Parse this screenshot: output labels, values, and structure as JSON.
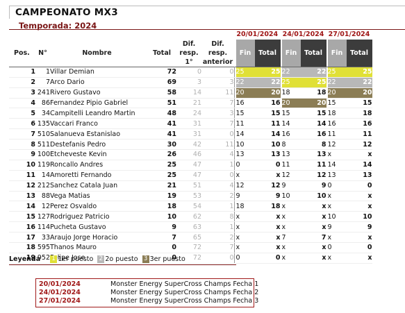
{
  "header": {
    "title": "CAMPEONATO MX3",
    "season": "Temporada: 2024"
  },
  "columns": {
    "pos": "Pos.",
    "num": "N°",
    "name": "Nombre",
    "total": "Total",
    "dif_first": [
      "Dif.",
      "resp.",
      "1°"
    ],
    "dif_prev": [
      "Dif.",
      "resp.",
      "anterior"
    ],
    "fin": "Fin",
    "tot": "Total"
  },
  "races": [
    {
      "date": "20/01/2024",
      "name": "Monster Energy SuperCross Champs Fecha 1"
    },
    {
      "date": "24/01/2024",
      "name": "Monster Energy SuperCross Champs Fecha 2"
    },
    {
      "date": "27/01/2024",
      "name": "Monster Energy SuperCross Champs Fecha 3"
    }
  ],
  "standings": [
    {
      "pos": "1",
      "num": "1",
      "name": "Villar Demian",
      "total": "72",
      "dif1": "0",
      "difp": "0",
      "r": [
        {
          "fin": "25",
          "tot": "25",
          "medal": "gold"
        },
        {
          "fin": "22",
          "tot": "22",
          "medal": "silver"
        },
        {
          "fin": "25",
          "tot": "25",
          "medal": "gold"
        }
      ]
    },
    {
      "pos": "2",
      "num": "7",
      "name": "Arco Dario",
      "total": "69",
      "dif1": "3",
      "difp": "3",
      "r": [
        {
          "fin": "22",
          "tot": "22",
          "medal": "silver"
        },
        {
          "fin": "25",
          "tot": "25",
          "medal": "gold"
        },
        {
          "fin": "22",
          "tot": "22",
          "medal": "silver"
        }
      ]
    },
    {
      "pos": "3",
      "num": "241",
      "name": "Rivero Gustavo",
      "total": "58",
      "dif1": "14",
      "difp": "11",
      "r": [
        {
          "fin": "20",
          "tot": "20",
          "medal": "bronze"
        },
        {
          "fin": "18",
          "tot": "18",
          "medal": "none"
        },
        {
          "fin": "20",
          "tot": "20",
          "medal": "bronze"
        }
      ]
    },
    {
      "pos": "4",
      "num": "86",
      "name": "Fernandez Pipio Gabriel",
      "total": "51",
      "dif1": "21",
      "difp": "7",
      "r": [
        {
          "fin": "16",
          "tot": "16",
          "medal": "none"
        },
        {
          "fin": "20",
          "tot": "20",
          "medal": "bronze"
        },
        {
          "fin": "15",
          "tot": "15",
          "medal": "none"
        }
      ]
    },
    {
      "pos": "5",
      "num": "34",
      "name": "Campitelli Leandro Martin",
      "total": "48",
      "dif1": "24",
      "difp": "3",
      "r": [
        {
          "fin": "15",
          "tot": "15",
          "medal": "none"
        },
        {
          "fin": "15",
          "tot": "15",
          "medal": "none"
        },
        {
          "fin": "18",
          "tot": "18",
          "medal": "none"
        }
      ]
    },
    {
      "pos": "6",
      "num": "135",
      "name": "Vaccari Franco",
      "total": "41",
      "dif1": "31",
      "difp": "7",
      "r": [
        {
          "fin": "11",
          "tot": "11",
          "medal": "none"
        },
        {
          "fin": "14",
          "tot": "14",
          "medal": "none"
        },
        {
          "fin": "16",
          "tot": "16",
          "medal": "none"
        }
      ]
    },
    {
      "pos": "7",
      "num": "510",
      "name": "Salanueva Estanislao",
      "total": "41",
      "dif1": "31",
      "difp": "0",
      "r": [
        {
          "fin": "14",
          "tot": "14",
          "medal": "none"
        },
        {
          "fin": "16",
          "tot": "16",
          "medal": "none"
        },
        {
          "fin": "11",
          "tot": "11",
          "medal": "none"
        }
      ]
    },
    {
      "pos": "8",
      "num": "511",
      "name": "Destefanis Pedro",
      "total": "30",
      "dif1": "42",
      "difp": "11",
      "r": [
        {
          "fin": "10",
          "tot": "10",
          "medal": "none"
        },
        {
          "fin": "8",
          "tot": "8",
          "medal": "none"
        },
        {
          "fin": "12",
          "tot": "12",
          "medal": "none"
        }
      ]
    },
    {
      "pos": "9",
      "num": "100",
      "name": "Etcheveste Kevin",
      "total": "26",
      "dif1": "46",
      "difp": "4",
      "r": [
        {
          "fin": "13",
          "tot": "13",
          "medal": "none"
        },
        {
          "fin": "13",
          "tot": "13",
          "medal": "none"
        },
        {
          "fin": "x",
          "tot": "x",
          "medal": "none"
        }
      ]
    },
    {
      "pos": "10",
      "num": "119",
      "name": "Roncallo Andres",
      "total": "25",
      "dif1": "47",
      "difp": "1",
      "r": [
        {
          "fin": "0",
          "tot": "0",
          "medal": "none"
        },
        {
          "fin": "11",
          "tot": "11",
          "medal": "none"
        },
        {
          "fin": "14",
          "tot": "14",
          "medal": "none"
        }
      ]
    },
    {
      "pos": "11",
      "num": "14",
      "name": "Amoretti Fernando",
      "total": "25",
      "dif1": "47",
      "difp": "0",
      "r": [
        {
          "fin": "x",
          "tot": "x",
          "medal": "none"
        },
        {
          "fin": "12",
          "tot": "12",
          "medal": "none"
        },
        {
          "fin": "13",
          "tot": "13",
          "medal": "none"
        }
      ]
    },
    {
      "pos": "12",
      "num": "212",
      "name": "Sanchez Catala Juan",
      "total": "21",
      "dif1": "51",
      "difp": "4",
      "r": [
        {
          "fin": "12",
          "tot": "12",
          "medal": "none"
        },
        {
          "fin": "9",
          "tot": "9",
          "medal": "none"
        },
        {
          "fin": "0",
          "tot": "0",
          "medal": "none"
        }
      ]
    },
    {
      "pos": "13",
      "num": "88",
      "name": "Vega Matias",
      "total": "19",
      "dif1": "53",
      "difp": "2",
      "r": [
        {
          "fin": "9",
          "tot": "9",
          "medal": "none"
        },
        {
          "fin": "10",
          "tot": "10",
          "medal": "none"
        },
        {
          "fin": "x",
          "tot": "x",
          "medal": "none"
        }
      ]
    },
    {
      "pos": "14",
      "num": "12",
      "name": "Perez Osvaldo",
      "total": "18",
      "dif1": "54",
      "difp": "1",
      "r": [
        {
          "fin": "18",
          "tot": "18",
          "medal": "none"
        },
        {
          "fin": "x",
          "tot": "x",
          "medal": "none"
        },
        {
          "fin": "x",
          "tot": "x",
          "medal": "none"
        }
      ]
    },
    {
      "pos": "15",
      "num": "127",
      "name": "Rodriguez Patricio",
      "total": "10",
      "dif1": "62",
      "difp": "8",
      "r": [
        {
          "fin": "x",
          "tot": "x",
          "medal": "none"
        },
        {
          "fin": "x",
          "tot": "x",
          "medal": "none"
        },
        {
          "fin": "10",
          "tot": "10",
          "medal": "none"
        }
      ]
    },
    {
      "pos": "16",
      "num": "114",
      "name": "Pucheta Gustavo",
      "total": "9",
      "dif1": "63",
      "difp": "1",
      "r": [
        {
          "fin": "x",
          "tot": "x",
          "medal": "none"
        },
        {
          "fin": "x",
          "tot": "x",
          "medal": "none"
        },
        {
          "fin": "9",
          "tot": "9",
          "medal": "none"
        }
      ]
    },
    {
      "pos": "17",
      "num": "33",
      "name": "Araujo Jorge Horacio",
      "total": "7",
      "dif1": "65",
      "difp": "2",
      "r": [
        {
          "fin": "x",
          "tot": "x",
          "medal": "none"
        },
        {
          "fin": "7",
          "tot": "7",
          "medal": "none"
        },
        {
          "fin": "x",
          "tot": "x",
          "medal": "none"
        }
      ]
    },
    {
      "pos": "18",
      "num": "595",
      "name": "Thanos Mauro",
      "total": "0",
      "dif1": "72",
      "difp": "7",
      "r": [
        {
          "fin": "x",
          "tot": "x",
          "medal": "none"
        },
        {
          "fin": "x",
          "tot": "x",
          "medal": "none"
        },
        {
          "fin": "0",
          "tot": "0",
          "medal": "none"
        }
      ]
    },
    {
      "pos": "19",
      "num": "952",
      "name": "Felipe Jose",
      "total": "0",
      "dif1": "72",
      "difp": "0",
      "r": [
        {
          "fin": "0",
          "tot": "0",
          "medal": "none"
        },
        {
          "fin": "x",
          "tot": "x",
          "medal": "none"
        },
        {
          "fin": "x",
          "tot": "x",
          "medal": "none"
        }
      ]
    }
  ],
  "legend": {
    "label": "Leyenda",
    "items": [
      {
        "num": "1",
        "text": "1er puesto",
        "color": "#e0e036"
      },
      {
        "num": "2",
        "text": "2o puesto",
        "color": "#b8b8b8"
      },
      {
        "num": "3",
        "text": "3er puesto",
        "color": "#8b7d55"
      }
    ]
  },
  "colors": {
    "accent": "#a01818",
    "fin_header": "#a8a8a8",
    "total_header": "#3c3c3c"
  }
}
